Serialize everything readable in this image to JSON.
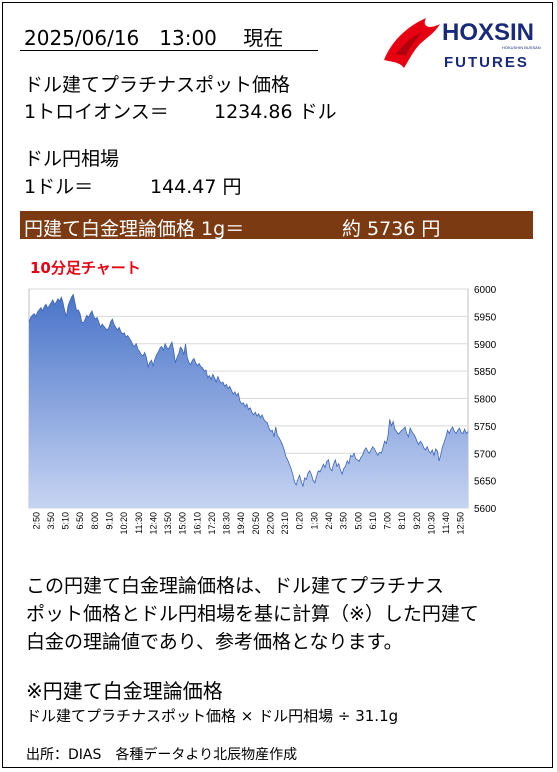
{
  "header": {
    "timestamp": "2025/06/16　13:00　 現在",
    "logo_main": "HOXSIN",
    "logo_sub": "FUTURES",
    "logo_small": "HOKUSHIN BUSSAN"
  },
  "platinum": {
    "title": "ドル建てプラチナスポット価格",
    "unit_label": "1トロイオンス＝",
    "value_text": "1234.86 ドル"
  },
  "fx": {
    "title": "ドル円相場",
    "unit_label": "1ドル＝",
    "value_text": "144.47 円"
  },
  "result": {
    "label": "円建て白金理論価格 1g＝",
    "value_text": "約 5736 円"
  },
  "chart_title": "10分足チャート",
  "chart_data": {
    "type": "area",
    "title": "10分足チャート",
    "xlabel": "",
    "ylabel": "",
    "ylim": [
      5600,
      6000
    ],
    "yticks": [
      5600,
      5650,
      5700,
      5750,
      5800,
      5850,
      5900,
      5950,
      6000
    ],
    "xtick_labels": [
      "2:50",
      "3:50",
      "5:10",
      "6:50",
      "8:00",
      "9:10",
      "10:20",
      "11:30",
      "12:40",
      "13:50",
      "15:00",
      "16:10",
      "17:20",
      "18:30",
      "19:40",
      "20:50",
      "22:00",
      "23:10",
      "0:20",
      "1:30",
      "2:40",
      "3:50",
      "5:00",
      "6:10",
      "7:00",
      "8:10",
      "9:20",
      "10:30",
      "11:40",
      "12:50"
    ],
    "grid": true,
    "legend": "none",
    "series_color": "#4a74c9",
    "values": [
      5940,
      5948,
      5952,
      5955,
      5950,
      5958,
      5962,
      5966,
      5960,
      5968,
      5972,
      5965,
      5970,
      5975,
      5980,
      5972,
      5976,
      5982,
      5978,
      5985,
      5975,
      5960,
      5950,
      5970,
      5978,
      5985,
      5990,
      5975,
      5960,
      5962,
      5955,
      5940,
      5938,
      5945,
      5952,
      5948,
      5955,
      5960,
      5950,
      5945,
      5948,
      5940,
      5930,
      5936,
      5932,
      5928,
      5925,
      5930,
      5940,
      5945,
      5935,
      5930,
      5925,
      5930,
      5922,
      5918,
      5920,
      5912,
      5915,
      5910,
      5905,
      5898,
      5895,
      5900,
      5890,
      5886,
      5880,
      5878,
      5884,
      5875,
      5858,
      5866,
      5870,
      5860,
      5872,
      5880,
      5885,
      5892,
      5895,
      5888,
      5900,
      5893,
      5890,
      5897,
      5903,
      5888,
      5865,
      5875,
      5882,
      5894,
      5890,
      5880,
      5900,
      5875,
      5866,
      5862,
      5870,
      5873,
      5865,
      5860,
      5864,
      5858,
      5856,
      5850,
      5852,
      5838,
      5842,
      5835,
      5844,
      5838,
      5830,
      5840,
      5832,
      5828,
      5830,
      5822,
      5826,
      5818,
      5822,
      5815,
      5808,
      5812,
      5805,
      5810,
      5795,
      5790,
      5792,
      5785,
      5790,
      5780,
      5783,
      5775,
      5770,
      5775,
      5768,
      5772,
      5765,
      5770,
      5762,
      5758,
      5756,
      5746,
      5740,
      5742,
      5730,
      5748,
      5732,
      5728,
      5722,
      5715,
      5706,
      5694,
      5688,
      5680,
      5672,
      5662,
      5648,
      5642,
      5652,
      5660,
      5648,
      5640,
      5655,
      5652,
      5664,
      5668,
      5661,
      5650,
      5646,
      5658,
      5668,
      5666,
      5672,
      5680,
      5674,
      5685,
      5688,
      5672,
      5668,
      5680,
      5688,
      5676,
      5681,
      5670,
      5662,
      5672,
      5676,
      5686,
      5681,
      5696,
      5694,
      5700,
      5690,
      5688,
      5685,
      5692,
      5696,
      5705,
      5710,
      5704,
      5700,
      5706,
      5712,
      5708,
      5702,
      5696,
      5702,
      5700,
      5710,
      5722,
      5718,
      5732,
      5762,
      5750,
      5758,
      5744,
      5740,
      5735,
      5738,
      5742,
      5744,
      5748,
      5736,
      5730,
      5746,
      5740,
      5735,
      5730,
      5722,
      5716,
      5722,
      5718,
      5710,
      5706,
      5712,
      5704,
      5700,
      5706,
      5696,
      5708,
      5704,
      5686,
      5697,
      5712,
      5720,
      5730,
      5742,
      5736,
      5744,
      5748,
      5740,
      5736,
      5742,
      5746,
      5738,
      5736,
      5744,
      5736,
      5740
    ]
  },
  "description": {
    "line1": "この円建て白金理論価格は、ドル建てプラチナス",
    "line2": "ポット価格とドル円相場を基に計算（※）した円建て",
    "line3": "白金の理論値であり、参考価格となります。"
  },
  "formula": {
    "title": "※円建て白金理論価格",
    "text": "ドル建てプラチナスポット価格 × ドル円相場 ÷ 31.1g"
  },
  "source": "出所：DIAS　各種データより北辰物産作成"
}
